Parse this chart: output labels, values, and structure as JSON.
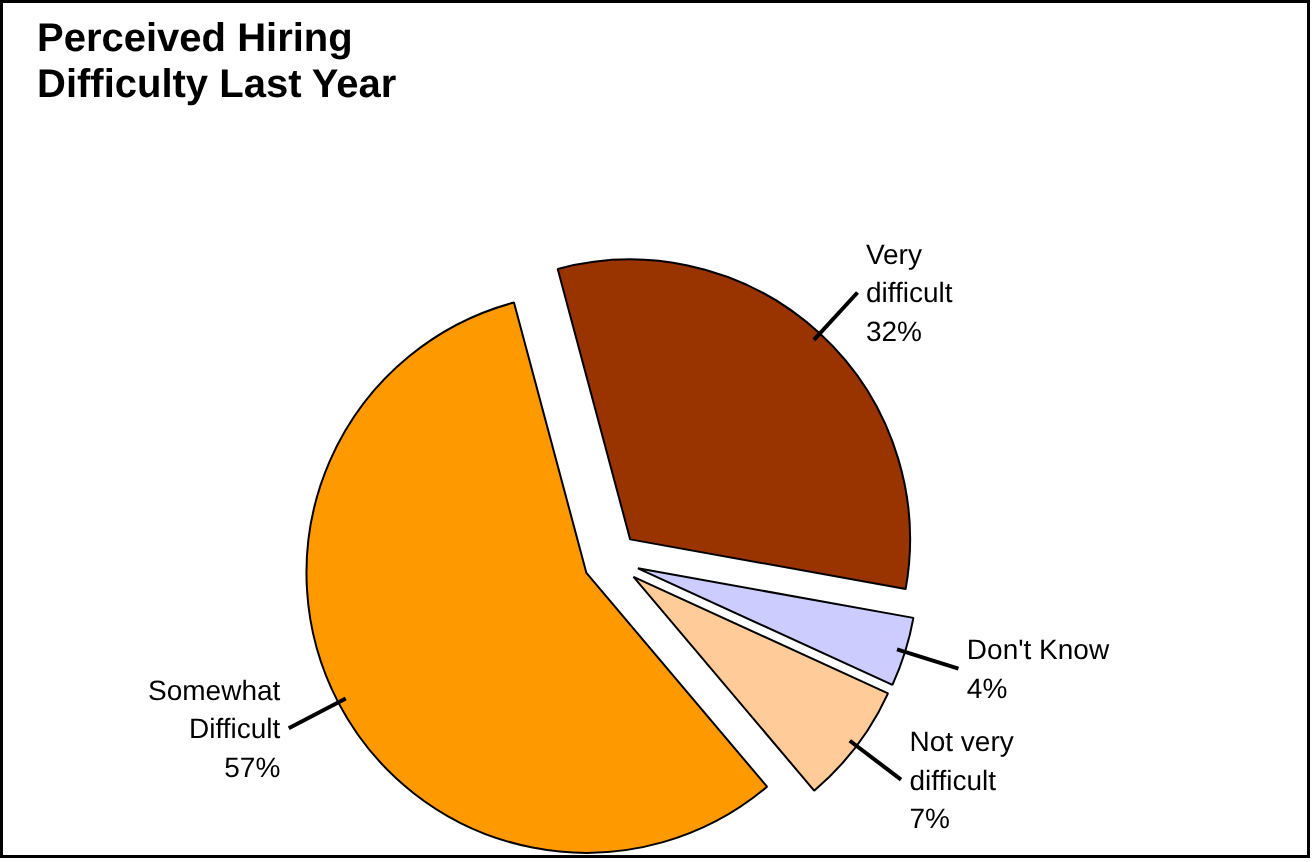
{
  "chart_data": {
    "type": "pie",
    "title": "Perceived Hiring\nDifficulty Last Year",
    "categories": [
      "Very\ndifficult",
      "Don't Know",
      "Not very\ndifficult",
      "Somewhat\nDifficult"
    ],
    "values": [
      32,
      4,
      7,
      57
    ],
    "value_labels": [
      "32%",
      "4%",
      "7%",
      "57%"
    ],
    "colors": [
      "#993300",
      "#ccccff",
      "#ffcc99",
      "#ff9900"
    ]
  }
}
